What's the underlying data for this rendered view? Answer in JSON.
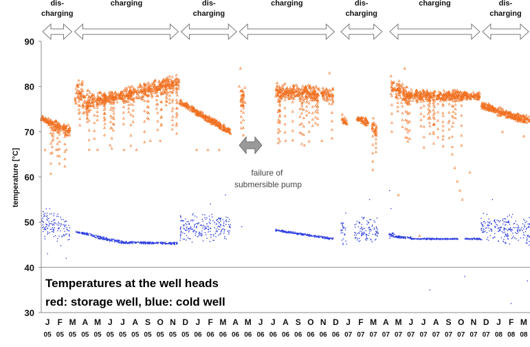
{
  "chart_data": {
    "type": "scatter",
    "title": "",
    "ylabel": "temperature [°C]",
    "xlabel": "",
    "ylim": [
      30,
      90
    ],
    "yticks": [
      30,
      40,
      50,
      60,
      70,
      80,
      90
    ],
    "grid": false,
    "months": [
      {
        "m": "J",
        "y": "05"
      },
      {
        "m": "F",
        "y": "05"
      },
      {
        "m": "M",
        "y": "05"
      },
      {
        "m": "A",
        "y": "05"
      },
      {
        "m": "M",
        "y": "05"
      },
      {
        "m": "J",
        "y": "05"
      },
      {
        "m": "J",
        "y": "05"
      },
      {
        "m": "A",
        "y": "05"
      },
      {
        "m": "S",
        "y": "05"
      },
      {
        "m": "O",
        "y": "05"
      },
      {
        "m": "N",
        "y": "05"
      },
      {
        "m": "D",
        "y": "05"
      },
      {
        "m": "J",
        "y": "06"
      },
      {
        "m": "F",
        "y": "06"
      },
      {
        "m": "M",
        "y": "06"
      },
      {
        "m": "A",
        "y": "06"
      },
      {
        "m": "M",
        "y": "06"
      },
      {
        "m": "J",
        "y": "06"
      },
      {
        "m": "J",
        "y": "06"
      },
      {
        "m": "A",
        "y": "06"
      },
      {
        "m": "S",
        "y": "06"
      },
      {
        "m": "O",
        "y": "06"
      },
      {
        "m": "N",
        "y": "06"
      },
      {
        "m": "D",
        "y": "06"
      },
      {
        "m": "J",
        "y": "07"
      },
      {
        "m": "F",
        "y": "07"
      },
      {
        "m": "M",
        "y": "07"
      },
      {
        "m": "A",
        "y": "07"
      },
      {
        "m": "M",
        "y": "07"
      },
      {
        "m": "J",
        "y": "07"
      },
      {
        "m": "J",
        "y": "07"
      },
      {
        "m": "A",
        "y": "07"
      },
      {
        "m": "S",
        "y": "07"
      },
      {
        "m": "O",
        "y": "07"
      },
      {
        "m": "N",
        "y": "07"
      },
      {
        "m": "D",
        "y": "07"
      },
      {
        "m": "J",
        "y": "08"
      },
      {
        "m": "F",
        "y": "08"
      },
      {
        "m": "M",
        "y": "08"
      }
    ],
    "periods": [
      {
        "label": [
          "dis-",
          "charging"
        ],
        "from": 0.0,
        "to": 2.55
      },
      {
        "label": [
          "charging"
        ],
        "from": 2.55,
        "to": 11.05
      },
      {
        "label": [
          "dis-",
          "charging"
        ],
        "from": 11.05,
        "to": 15.7
      },
      {
        "label": [
          "charging"
        ],
        "from": 15.7,
        "to": 23.5
      },
      {
        "label": [
          "dis-",
          "charging"
        ],
        "from": 23.8,
        "to": 27.3
      },
      {
        "label": [
          "charging"
        ],
        "from": 27.7,
        "to": 35.1
      },
      {
        "label": [
          "dis-",
          "charging"
        ],
        "from": 35.1,
        "to": 39.0
      }
    ],
    "series": [
      {
        "name": "storage well",
        "color": "#f07020",
        "marker": "triangle",
        "segments": [
          {
            "from": 0.0,
            "to": 0.7,
            "start": 73,
            "end": 72,
            "spread": 1.0
          },
          {
            "from": 0.7,
            "to": 2.3,
            "start": 72,
            "end": 70,
            "spread": 1.5
          },
          {
            "from": 2.7,
            "to": 3.3,
            "start": 78,
            "end": 79,
            "spread": 3.0
          },
          {
            "from": 3.3,
            "to": 4.0,
            "start": 76,
            "end": 77,
            "spread": 3.0
          },
          {
            "from": 4.0,
            "to": 6.6,
            "start": 77,
            "end": 78,
            "spread": 1.5
          },
          {
            "from": 6.6,
            "to": 11.0,
            "start": 78,
            "end": 81,
            "spread": 2.0
          },
          {
            "from": 11.05,
            "to": 15.1,
            "start": 76.5,
            "end": 70,
            "spread": 0.8
          },
          {
            "from": 15.9,
            "to": 16.3,
            "start": 77,
            "end": 78,
            "spread": 3.0
          },
          {
            "from": 18.7,
            "to": 23.3,
            "start": 79,
            "end": 78,
            "spread": 2.0
          },
          {
            "from": 24.0,
            "to": 24.4,
            "start": 73,
            "end": 72,
            "spread": 1.0
          },
          {
            "from": 25.2,
            "to": 26.1,
            "start": 73,
            "end": 72,
            "spread": 1.0
          },
          {
            "from": 26.4,
            "to": 26.8,
            "start": 71,
            "end": 70,
            "spread": 1.5
          },
          {
            "from": 27.9,
            "to": 29.3,
            "start": 80,
            "end": 78,
            "spread": 2.5
          },
          {
            "from": 29.3,
            "to": 33.6,
            "start": 78,
            "end": 78,
            "spread": 1.5
          },
          {
            "from": 33.6,
            "to": 35.0,
            "start": 78,
            "end": 78,
            "spread": 1.0
          },
          {
            "from": 35.1,
            "to": 37.5,
            "start": 76,
            "end": 73.5,
            "spread": 1.0
          },
          {
            "from": 37.5,
            "to": 39.0,
            "start": 73.5,
            "end": 72.5,
            "spread": 1.0
          }
        ],
        "outliers": [
          {
            "x": 0.3,
            "y": 66
          },
          {
            "x": 1.2,
            "y": 66
          },
          {
            "x": 2.0,
            "y": 66
          },
          {
            "x": 4.5,
            "y": 66
          },
          {
            "x": 5.5,
            "y": 67
          },
          {
            "x": 6.6,
            "y": 66
          },
          {
            "x": 7.6,
            "y": 66
          },
          {
            "x": 8.7,
            "y": 68
          },
          {
            "x": 9.5,
            "y": 68
          },
          {
            "x": 12.4,
            "y": 66
          },
          {
            "x": 13.3,
            "y": 66
          },
          {
            "x": 14.2,
            "y": 66
          },
          {
            "x": 15.8,
            "y": 80
          },
          {
            "x": 15.9,
            "y": 84
          },
          {
            "x": 19.5,
            "y": 68
          },
          {
            "x": 21.0,
            "y": 67
          },
          {
            "x": 22.4,
            "y": 68
          },
          {
            "x": 23.0,
            "y": 83
          },
          {
            "x": 26.5,
            "y": 73
          },
          {
            "x": 29.0,
            "y": 84
          },
          {
            "x": 31.0,
            "y": 77
          },
          {
            "x": 32.5,
            "y": 72
          },
          {
            "x": 32.8,
            "y": 65
          },
          {
            "x": 33.0,
            "y": 62
          },
          {
            "x": 33.2,
            "y": 59
          },
          {
            "x": 33.4,
            "y": 57
          },
          {
            "x": 33.6,
            "y": 55
          },
          {
            "x": 34.2,
            "y": 61
          },
          {
            "x": 28.5,
            "y": 56
          },
          {
            "x": 30.2,
            "y": 47
          },
          {
            "x": 36.8,
            "y": 70
          },
          {
            "x": 38.5,
            "y": 69
          }
        ]
      },
      {
        "name": "cold well",
        "color": "#2e3ee0",
        "marker": "dot",
        "segments": [
          {
            "from": 0.0,
            "to": 2.3,
            "start": 50,
            "end": 48,
            "spread": 4.0
          },
          {
            "from": 2.75,
            "to": 4.0,
            "start": 47.8,
            "end": 47.2,
            "spread": 0.3
          },
          {
            "from": 4.0,
            "to": 6.5,
            "start": 47,
            "end": 45.5,
            "spread": 0.4
          },
          {
            "from": 6.5,
            "to": 10.9,
            "start": 45.5,
            "end": 45.3,
            "spread": 0.3
          },
          {
            "from": 11.05,
            "to": 15.1,
            "start": 48.5,
            "end": 49,
            "spread": 3.5
          },
          {
            "from": 18.7,
            "to": 23.3,
            "start": 48.2,
            "end": 46.3,
            "spread": 0.3
          },
          {
            "from": 23.9,
            "to": 24.4,
            "start": 48,
            "end": 47,
            "spread": 3.0
          },
          {
            "from": 25.0,
            "to": 26.9,
            "start": 48,
            "end": 48,
            "spread": 3.5
          },
          {
            "from": 27.7,
            "to": 28.2,
            "start": 47.2,
            "end": 47,
            "spread": 0.8
          },
          {
            "from": 28.2,
            "to": 29.5,
            "start": 46.8,
            "end": 46.5,
            "spread": 0.3
          },
          {
            "from": 29.5,
            "to": 33.3,
            "start": 46.3,
            "end": 46.3,
            "spread": 0.2
          },
          {
            "from": 33.8,
            "to": 35.1,
            "start": 46.3,
            "end": 46.3,
            "spread": 0.2
          },
          {
            "from": 35.1,
            "to": 39.0,
            "start": 49,
            "end": 48,
            "spread": 3.5
          }
        ],
        "outliers": [
          {
            "x": 0.5,
            "y": 43
          },
          {
            "x": 2.0,
            "y": 42
          },
          {
            "x": 13.5,
            "y": 54
          },
          {
            "x": 14.7,
            "y": 56
          },
          {
            "x": 16.0,
            "y": 49
          },
          {
            "x": 24.3,
            "y": 52
          },
          {
            "x": 26.2,
            "y": 55
          },
          {
            "x": 27.8,
            "y": 57
          },
          {
            "x": 27.9,
            "y": 53
          },
          {
            "x": 31.0,
            "y": 35
          },
          {
            "x": 33.8,
            "y": 38
          },
          {
            "x": 37.5,
            "y": 32
          },
          {
            "x": 36.0,
            "y": 55
          },
          {
            "x": 38.8,
            "y": 37
          }
        ]
      }
    ],
    "annotation_arrow": {
      "x_from": 15.8,
      "x_to": 17.6,
      "y": 67
    },
    "annotation": [
      "failure of",
      "submersible pump"
    ],
    "caption": [
      "Temperatures at the well heads",
      "red: storage well, blue: cold well"
    ]
  }
}
